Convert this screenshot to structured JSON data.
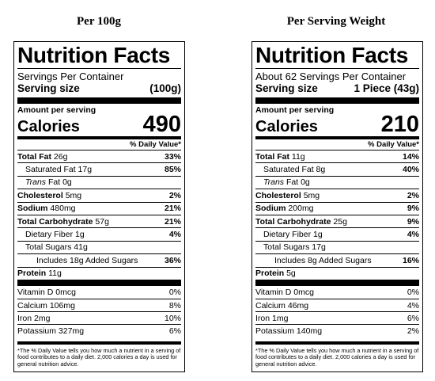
{
  "columns": [
    {
      "heading": "Per 100g",
      "label_title": "Nutrition Facts",
      "servings_per_container": "Servings Per Container",
      "serving_size_label": "Serving size",
      "serving_size_value": "(100g)",
      "amount_per_serving": "Amount per serving",
      "calories_label": "Calories",
      "calories_value": "490",
      "daily_value_header": "% Daily Value*",
      "total_fat": {
        "label": "Total Fat",
        "amount": "26g",
        "dv": "33%"
      },
      "saturated_fat": {
        "label": "Saturated Fat",
        "amount": "17g",
        "dv": "85%"
      },
      "trans_fat": {
        "label": "Trans",
        "amount": "Fat 0g"
      },
      "cholesterol": {
        "label": "Cholesterol",
        "amount": "5mg",
        "dv": "2%"
      },
      "sodium": {
        "label": "Sodium",
        "amount": "480mg",
        "dv": "21%"
      },
      "total_carbohydrate": {
        "label": "Total Carbohydrate",
        "amount": "57g",
        "dv": "21%"
      },
      "dietary_fiber": {
        "label": "Dietary Fiber",
        "amount": "1g",
        "dv": "4%"
      },
      "total_sugars": {
        "label": "Total Sugars",
        "amount": "41g"
      },
      "added_sugars": {
        "label": "Includes 18g Added Sugars",
        "dv": "36%"
      },
      "protein": {
        "label": "Protein",
        "amount": "11g"
      },
      "vitamin_d": {
        "label": "Vitamin D 0mcg",
        "dv": "0%"
      },
      "calcium": {
        "label": "Calcium 106mg",
        "dv": "8%"
      },
      "iron": {
        "label": "Iron 2mg",
        "dv": "10%"
      },
      "potassium": {
        "label": "Potassium 327mg",
        "dv": "6%"
      },
      "footnote": "*The % Daily Value tells you how much a nutrient in a serving of food contributes to a daily diet. 2,000 calories a day is used for general nutrition advice."
    },
    {
      "heading": "Per Serving Weight",
      "label_title": "Nutrition Facts",
      "servings_per_container": "About 62 Servings Per Container",
      "serving_size_label": "Serving size",
      "serving_size_value": "1 Piece (43g)",
      "amount_per_serving": "Amount per serving",
      "calories_label": "Calories",
      "calories_value": "210",
      "daily_value_header": "% Daily Value*",
      "total_fat": {
        "label": "Total Fat",
        "amount": "11g",
        "dv": "14%"
      },
      "saturated_fat": {
        "label": "Saturated Fat",
        "amount": "8g",
        "dv": "40%"
      },
      "trans_fat": {
        "label": "Trans",
        "amount": "Fat 0g"
      },
      "cholesterol": {
        "label": "Cholesterol",
        "amount": "5mg",
        "dv": "2%"
      },
      "sodium": {
        "label": "Sodium",
        "amount": "200mg",
        "dv": "9%"
      },
      "total_carbohydrate": {
        "label": "Total Carbohydrate",
        "amount": "25g",
        "dv": "9%"
      },
      "dietary_fiber": {
        "label": "Dietary Fiber",
        "amount": "1g",
        "dv": "4%"
      },
      "total_sugars": {
        "label": "Total Sugars",
        "amount": "17g"
      },
      "added_sugars": {
        "label": "Includes 8g Added Sugars",
        "dv": "16%"
      },
      "protein": {
        "label": "Protein",
        "amount": "5g"
      },
      "vitamin_d": {
        "label": "Vitamin D 0mcg",
        "dv": "0%"
      },
      "calcium": {
        "label": "Calcium 46mg",
        "dv": "4%"
      },
      "iron": {
        "label": "Iron 1mg",
        "dv": "6%"
      },
      "potassium": {
        "label": "Potassium 140mg",
        "dv": "2%"
      },
      "footnote": "*The % Daily Value tells you how much a nutrient in a serving of food contributes to a daily diet. 2,000 calories a day is used for general nutrition advice."
    }
  ]
}
